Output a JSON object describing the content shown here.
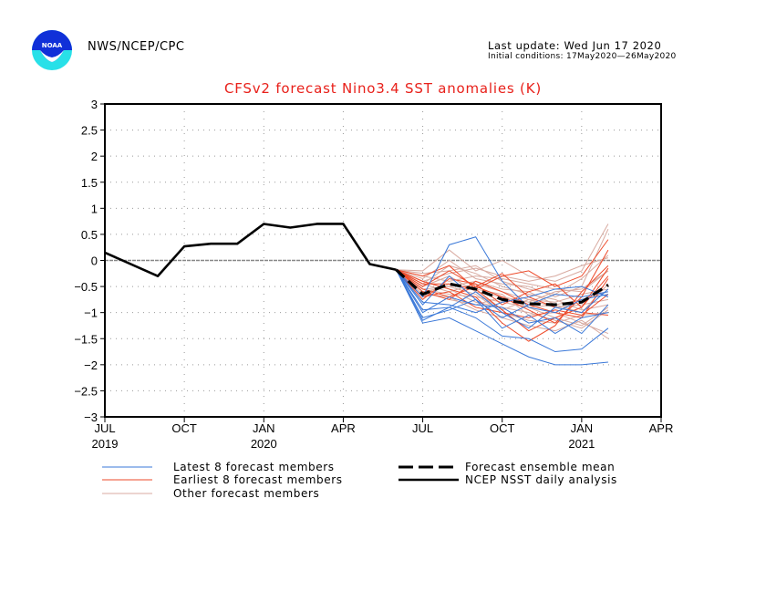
{
  "header": {
    "organization": "NWS/NCEP/CPC",
    "logo_text": "NOAA",
    "last_update": "Last update: Wed Jun 17 2020",
    "initial_conditions": "Initial conditions: 17May2020—26May2020"
  },
  "colors": {
    "title": "#e8201a",
    "latest": "#3a78d8",
    "earliest": "#ee4a2a",
    "other": "#d8aaa0",
    "mean": "#000000",
    "analysis": "#000000",
    "zero_line": "#888888",
    "grid": "#999999"
  },
  "chart_data": {
    "type": "line",
    "title": "CFSv2 forecast Nino3.4 SST anomalies (K)",
    "xlabel": "",
    "ylabel": "",
    "ylim": [
      -3,
      3
    ],
    "yticks": [
      3,
      2.5,
      2,
      1.5,
      1,
      0.5,
      0,
      -0.5,
      -1,
      -1.5,
      -2,
      -2.5,
      -3
    ],
    "ytick_labels": [
      "3",
      "2.5",
      "2",
      "1.5",
      "1",
      "0.5",
      "0",
      "-0.5",
      "-1",
      "-1.5",
      "-2",
      "-2.5",
      "-3"
    ],
    "xlim_months": [
      0,
      21
    ],
    "xticks": [
      {
        "month": 0,
        "label": "JUL",
        "year": "2019"
      },
      {
        "month": 3,
        "label": "OCT",
        "year": ""
      },
      {
        "month": 6,
        "label": "JAN",
        "year": "2020"
      },
      {
        "month": 9,
        "label": "APR",
        "year": ""
      },
      {
        "month": 12,
        "label": "JUL",
        "year": ""
      },
      {
        "month": 15,
        "label": "OCT",
        "year": ""
      },
      {
        "month": 18,
        "label": "JAN",
        "year": "2021"
      },
      {
        "month": 21,
        "label": "APR",
        "year": ""
      }
    ],
    "grid": true,
    "legend": {
      "placement": "bottom",
      "entries": [
        {
          "label": "Latest 8 forecast members",
          "style": "latest"
        },
        {
          "label": "Earliest 8 forecast members",
          "style": "earliest"
        },
        {
          "label": "Other forecast members",
          "style": "other"
        },
        {
          "label": "Forecast ensemble mean",
          "style": "mean"
        },
        {
          "label": "NCEP NSST daily analysis",
          "style": "analysis"
        }
      ]
    },
    "analysis": {
      "name": "NCEP NSST daily analysis",
      "x": [
        0,
        2,
        3,
        4,
        5,
        6,
        7,
        8,
        9,
        10,
        11
      ],
      "y": [
        0.15,
        -0.3,
        0.27,
        0.32,
        0.32,
        0.7,
        0.63,
        0.7,
        0.7,
        -0.07,
        -0.18
      ]
    },
    "ensemble_mean": {
      "name": "Forecast ensemble mean",
      "x": [
        11,
        12,
        13,
        14,
        15,
        16,
        17,
        18,
        19
      ],
      "y": [
        -0.18,
        -0.65,
        -0.45,
        -0.55,
        -0.75,
        -0.83,
        -0.85,
        -0.8,
        -0.47
      ]
    },
    "forecast_x": [
      11,
      12,
      13,
      14,
      15,
      16,
      17,
      18,
      19
    ],
    "latest_members": [
      [
        -0.18,
        -1.2,
        -1.1,
        -1.35,
        -1.6,
        -1.85,
        -2.0,
        -2.0,
        -1.95
      ],
      [
        -0.18,
        -1.15,
        -0.9,
        -1.1,
        -1.45,
        -1.5,
        -1.75,
        -1.7,
        -1.3
      ],
      [
        -0.18,
        -0.7,
        0.3,
        0.45,
        -0.4,
        -0.9,
        -1.0,
        -0.75,
        -0.65
      ],
      [
        -0.18,
        -0.95,
        -0.9,
        -0.6,
        -1.0,
        -1.3,
        -0.9,
        -1.0,
        -0.55
      ],
      [
        -0.18,
        -0.85,
        -0.3,
        -0.75,
        -1.1,
        -0.85,
        -0.65,
        -0.7,
        -0.6
      ],
      [
        -0.18,
        -1.0,
        -0.7,
        -0.85,
        -0.9,
        -1.2,
        -1.1,
        -1.4,
        -0.85
      ],
      [
        -0.18,
        -0.8,
        -0.85,
        -1.0,
        -0.8,
        -0.7,
        -0.55,
        -0.5,
        -0.7
      ],
      [
        -0.18,
        -1.1,
        -0.95,
        -0.75,
        -1.3,
        -1.05,
        -1.4,
        -1.1,
        -1.0
      ]
    ],
    "earliest_members": [
      [
        -0.18,
        -0.3,
        -0.1,
        -0.55,
        -0.3,
        -0.2,
        -0.5,
        -0.3,
        0.4
      ],
      [
        -0.18,
        -0.45,
        -0.45,
        -0.55,
        -0.95,
        -1.35,
        -1.1,
        -0.9,
        -0.15
      ],
      [
        -0.18,
        -0.55,
        -0.7,
        -0.5,
        -0.7,
        -0.95,
        -1.2,
        -0.7,
        0.2
      ],
      [
        -0.18,
        -0.4,
        -0.55,
        -0.7,
        -1.2,
        -1.55,
        -1.25,
        -0.6,
        -0.1
      ],
      [
        -0.18,
        -0.6,
        -0.75,
        -0.4,
        -0.6,
        -0.85,
        -1.0,
        -1.1,
        -0.35
      ],
      [
        -0.18,
        -0.7,
        -0.6,
        -0.9,
        -1.0,
        -1.1,
        -0.95,
        -1.05,
        -0.65
      ],
      [
        -0.18,
        -0.5,
        -0.2,
        -0.5,
        -0.25,
        -0.7,
        -0.9,
        -1.0,
        -1.05
      ],
      [
        -0.18,
        -0.75,
        -0.35,
        -0.45,
        -0.85,
        -0.6,
        -0.45,
        -0.9,
        -0.3
      ]
    ],
    "other_members": [
      [
        -0.18,
        -0.2,
        0.2,
        -0.2,
        0.0,
        -0.3,
        -0.4,
        -0.2,
        0.7
      ],
      [
        -0.18,
        -0.35,
        0.0,
        -0.35,
        -0.45,
        -0.5,
        -0.7,
        -0.5,
        0.6
      ],
      [
        -0.18,
        -0.5,
        -0.3,
        -0.6,
        -0.7,
        -0.8,
        -0.6,
        -0.55,
        -0.2
      ],
      [
        -0.18,
        -0.6,
        -0.5,
        -0.4,
        -0.55,
        -0.6,
        -0.85,
        -1.0,
        -0.45
      ],
      [
        -0.18,
        -0.4,
        -0.55,
        -0.8,
        -0.9,
        -1.0,
        -1.15,
        -1.3,
        -0.95
      ],
      [
        -0.18,
        -0.65,
        -0.7,
        -0.95,
        -1.1,
        -1.25,
        -1.35,
        -1.15,
        -1.5
      ],
      [
        -0.18,
        -0.45,
        -0.1,
        -0.25,
        -0.5,
        -0.65,
        -0.75,
        -0.95,
        -0.85
      ],
      [
        -0.18,
        -0.3,
        -0.4,
        -0.3,
        -0.35,
        -0.45,
        -0.55,
        -0.6,
        -0.2
      ],
      [
        -0.18,
        -0.55,
        -0.65,
        -0.7,
        -0.8,
        -0.9,
        -0.85,
        -0.75,
        -0.6
      ],
      [
        -0.18,
        -0.7,
        -0.45,
        -0.55,
        -0.65,
        -1.05,
        -1.0,
        -1.2,
        -1.4
      ],
      [
        -0.18,
        -0.5,
        -0.3,
        -0.6,
        -0.95,
        -0.75,
        -0.9,
        -0.85,
        -0.75
      ],
      [
        -0.18,
        -0.25,
        -0.2,
        -0.1,
        -0.4,
        -0.55,
        -0.65,
        -0.35,
        0.1
      ],
      [
        -0.18,
        -0.6,
        -0.75,
        -0.85,
        -0.7,
        -0.9,
        -1.1,
        -1.25,
        -0.9
      ],
      [
        -0.18,
        -0.45,
        -0.6,
        -0.45,
        -0.6,
        -0.75,
        -0.8,
        -0.65,
        -0.55
      ],
      [
        -0.18,
        -0.4,
        -0.25,
        -0.15,
        -0.3,
        -0.4,
        -0.3,
        -0.1,
        0.05
      ],
      [
        -0.18,
        -0.55,
        -0.5,
        -0.65,
        -1.0,
        -1.15,
        -1.2,
        -1.05,
        -1.0
      ]
    ]
  }
}
